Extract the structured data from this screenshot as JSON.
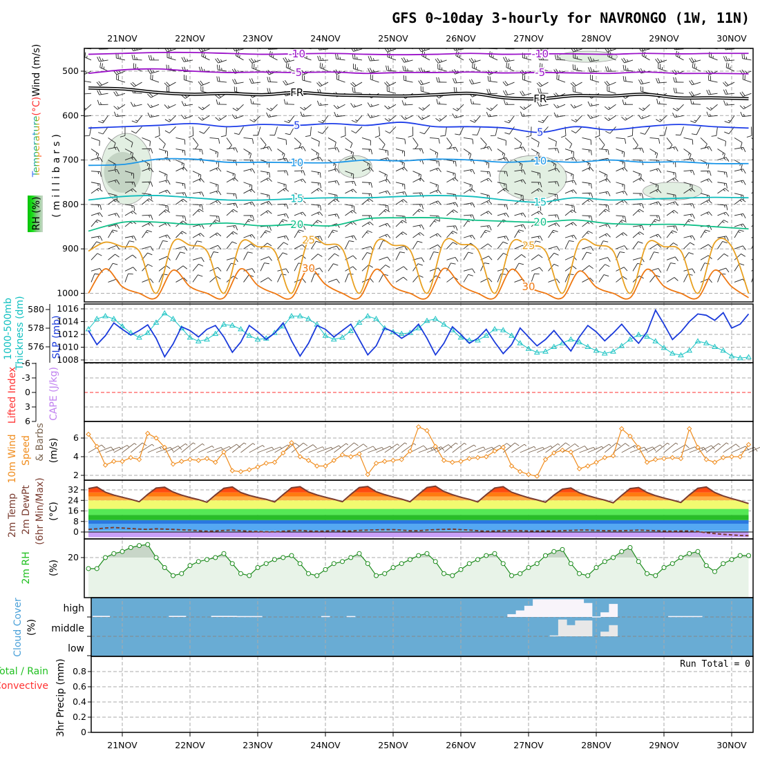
{
  "title": "GFS 0~10day 3-hourly for NAVRONGO (1W, 11N)",
  "dates": [
    "21NOV",
    "22NOV",
    "23NOV",
    "24NOV",
    "25NOV",
    "26NOV",
    "27NOV",
    "28NOV",
    "29NOV",
    "30NOV"
  ],
  "labels": {
    "wind": "Wind (m/s)",
    "degc": "(°C)",
    "temperature": "Temperature",
    "millibars": "(millibars)",
    "rh_box": "RH (%)",
    "thickness_1": "1000-500mb",
    "thickness_2": "Thickness (dm)",
    "slp": "SLP (mb)",
    "lifted_index": "Lifted Index",
    "cape": "CAPE (J/kg)",
    "wind10_1": "10m Wind",
    "wind10_2": "Speed",
    "wind10_3": "& Barbs",
    "wind10_unit": "(m/s)",
    "temp_1": "2m Temp",
    "temp_2": "2m DewPt",
    "temp_3": "(6hr Min/Max)",
    "temp_unit": "(°C)",
    "rh2m": "2m RH",
    "rh_unit": "(%)",
    "cloud": "Cloud Cover",
    "cloud_unit": "(%)",
    "cloud_high": "high",
    "cloud_middle": "middle",
    "cloud_low": "low",
    "precip_total": "Total / Rain",
    "precip_conv": "Convective",
    "precip_axis": "3hr Precip (mm)",
    "run_total": "Run Total = 0"
  },
  "colors": {
    "slp": "#1a3adb",
    "thickness": "#1cc4c4",
    "wind": "#f08c1c",
    "barb": "#7a6450",
    "temp_line": "#7a3c30",
    "rh_line": "#1a8a1a",
    "rh_fill": "#e8f3e8",
    "rh_fill_dark": "#c8d6c8",
    "cloud_bg": "#69acd4",
    "cloud_high": "#f8f4fa",
    "cloud_mid": "#e8e8e8",
    "li_zero": "#ff3030"
  },
  "chart_data": [
    {
      "type": "contour",
      "name": "upper-air",
      "ylabel": "millibars",
      "yticks": [
        500,
        600,
        700,
        800,
        900,
        1000
      ],
      "ylim": [
        450,
        1010
      ],
      "isotherms": [
        {
          "label": "-10",
          "color": "#9a10c8",
          "p": [
            462,
            460,
            458,
            458,
            460,
            462,
            461,
            460,
            462,
            463,
            462,
            460,
            462,
            461,
            461,
            462,
            460,
            461,
            460,
            460
          ]
        },
        {
          "label": "-5",
          "color": "#9a10c8",
          "p": [
            505,
            497,
            495,
            500,
            503,
            502,
            503,
            502,
            505,
            503,
            503,
            502,
            504,
            503,
            504,
            505,
            502,
            505,
            505,
            506
          ]
        },
        {
          "label": "FR",
          "color": "#000000",
          "p": [
            538,
            540,
            548,
            552,
            550,
            553,
            548,
            553,
            555,
            556,
            553,
            550,
            560,
            562,
            555,
            556,
            552,
            560,
            560,
            562
          ]
        },
        {
          "label": "5",
          "color": "#1c3ce8",
          "p": [
            628,
            625,
            622,
            618,
            625,
            620,
            622,
            618,
            622,
            615,
            625,
            625,
            628,
            638,
            625,
            632,
            625,
            620,
            625,
            628
          ]
        },
        {
          "label": "10",
          "color": "#1a96e8",
          "p": [
            712,
            710,
            698,
            698,
            705,
            705,
            706,
            706,
            700,
            702,
            698,
            700,
            705,
            702,
            705,
            700,
            705,
            704,
            708,
            708
          ]
        },
        {
          "label": "15",
          "color": "#10bcbc",
          "p": [
            790,
            782,
            780,
            785,
            790,
            790,
            787,
            785,
            785,
            782,
            780,
            782,
            790,
            795,
            785,
            790,
            788,
            786,
            784,
            785
          ]
        },
        {
          "label": "20",
          "color": "#10c088",
          "p": [
            860,
            840,
            840,
            845,
            842,
            848,
            845,
            848,
            832,
            830,
            830,
            835,
            838,
            840,
            835,
            843,
            845,
            845,
            850,
            855
          ]
        },
        {
          "label": "25",
          "color": "#e8a020",
          "p": [
            905,
            885,
            895,
            905,
            1000,
            885,
            892,
            905,
            1000,
            886,
            895,
            905,
            1000,
            880,
            890,
            900,
            1000,
            885,
            892,
            903,
            1000,
            884,
            890,
            902,
            1000,
            886,
            893,
            905,
            1000,
            885,
            892,
            905,
            1000,
            888,
            895,
            905,
            1000,
            886,
            895,
            1000
          ]
        },
        {
          "label": "30",
          "color": "#ee7711",
          "p": [
            1000,
            945,
            985,
            1000,
            1010,
            948,
            985,
            1000,
            1010,
            945,
            982,
            1000,
            1010,
            944,
            980,
            1000,
            1010,
            946,
            985,
            1000,
            1010,
            944,
            982,
            1000,
            1010,
            946,
            985,
            1000,
            1010,
            950,
            986,
            1000,
            1010,
            946,
            984,
            1000,
            1010,
            948,
            985,
            1010
          ]
        }
      ],
      "rh_areas": [
        {
          "label": "30",
          "i0": 2,
          "i1": 7,
          "p0": 640,
          "p1": 800,
          "dark": true
        },
        {
          "label": "30",
          "i0": 30,
          "i1": 33,
          "p0": 690,
          "p1": 740,
          "dark": false
        },
        {
          "label": "30",
          "i0": 49,
          "i1": 56,
          "p0": 690,
          "p1": 790,
          "dark": false
        },
        {
          "label": "30",
          "i0": 56,
          "i1": 62,
          "p0": 455,
          "p1": 480,
          "dark": false
        },
        {
          "label": "30",
          "i0": 66,
          "i1": 72,
          "p0": 750,
          "p1": 790,
          "dark": false
        }
      ],
      "wind_profile": [
        {
          "p": 450,
          "dir": 275,
          "kt": 25
        },
        {
          "p": 475,
          "dir": 275,
          "kt": 25
        },
        {
          "p": 500,
          "dir": 270,
          "kt": 25
        },
        {
          "p": 525,
          "dir": 265,
          "kt": 20
        },
        {
          "p": 550,
          "dir": 260,
          "kt": 20
        },
        {
          "p": 575,
          "dir": 250,
          "kt": 15
        },
        {
          "p": 600,
          "dir": 240,
          "kt": 15
        },
        {
          "p": 625,
          "dir": 200,
          "kt": 10
        },
        {
          "p": 650,
          "dir": 120,
          "kt": 10
        },
        {
          "p": 675,
          "dir": 100,
          "kt": 15
        },
        {
          "p": 700,
          "dir": 95,
          "kt": 15
        },
        {
          "p": 725,
          "dir": 90,
          "kt": 15
        },
        {
          "p": 750,
          "dir": 85,
          "kt": 15
        },
        {
          "p": 775,
          "dir": 80,
          "kt": 15
        },
        {
          "p": 800,
          "dir": 75,
          "kt": 15
        },
        {
          "p": 825,
          "dir": 70,
          "kt": 15
        },
        {
          "p": 850,
          "dir": 60,
          "kt": 15
        },
        {
          "p": 875,
          "dir": 55,
          "kt": 15
        },
        {
          "p": 900,
          "dir": 50,
          "kt": 10
        },
        {
          "p": 925,
          "dir": 50,
          "kt": 10
        },
        {
          "p": 950,
          "dir": 50,
          "kt": 10
        },
        {
          "p": 975,
          "dir": 45,
          "kt": 10
        }
      ]
    },
    {
      "type": "line",
      "name": "slp-thickness",
      "series": [
        {
          "name": "SLP (mb)",
          "axis": "right",
          "ylim": [
            1008,
            1016
          ],
          "yticks": [
            1008,
            1010,
            1012,
            1014,
            1016
          ],
          "values": [
            1012.6,
            1010.4,
            1011.8,
            1013.8,
            1012.8,
            1011.9,
            1012.6,
            1013.5,
            1011.4,
            1008.5,
            1010.5,
            1013.2,
            1012.6,
            1011.6,
            1012.8,
            1013.4,
            1011.6,
            1009.2,
            1010.8,
            1013.4,
            1012.4,
            1011.2,
            1012.2,
            1013.8,
            1011.0,
            1008.6,
            1010.6,
            1013.4,
            1012.8,
            1011.6,
            1012.6,
            1013.6,
            1011.2,
            1008.8,
            1010.2,
            1013.0,
            1012.4,
            1011.4,
            1012.2,
            1013.6,
            1011.4,
            1008.8,
            1010.6,
            1013.2,
            1012.0,
            1010.6,
            1011.4,
            1012.8,
            1010.8,
            1009.0,
            1010.4,
            1013.0,
            1011.6,
            1010.2,
            1011.2,
            1012.6,
            1011.0,
            1009.4,
            1011.6,
            1013.4,
            1012.4,
            1011.0,
            1012.2,
            1013.6,
            1012.0,
            1010.6,
            1012.4,
            1015.8,
            1013.6,
            1011.2,
            1012.4,
            1014.0,
            1015.2,
            1015.0,
            1014.2,
            1015.4,
            1013.0,
            1013.6,
            1015.2
          ]
        },
        {
          "name": "1000-500mb Thickness (dm)",
          "axis": "left",
          "ylim": [
            574.5,
            580.5
          ],
          "yticks": [
            576,
            578,
            580
          ],
          "values": [
            577.9,
            579.0,
            579.3,
            579.0,
            578.2,
            577.5,
            577.0,
            577.5,
            578.6,
            579.6,
            579.0,
            578.0,
            577.0,
            576.6,
            576.8,
            577.4,
            578.4,
            578.3,
            577.9,
            577.2,
            576.8,
            576.9,
            577.5,
            578.2,
            579.3,
            579.3,
            579.0,
            578.4,
            577.2,
            576.8,
            577.0,
            577.7,
            578.6,
            579.3,
            579.0,
            578.0,
            577.6,
            577.4,
            577.5,
            578.0,
            578.8,
            579.0,
            578.4,
            577.8,
            577.0,
            576.7,
            576.7,
            577.2,
            577.9,
            577.8,
            577.2,
            576.4,
            575.8,
            575.4,
            575.5,
            576.0,
            576.4,
            576.8,
            576.5,
            576.0,
            575.6,
            575.3,
            575.5,
            576.1,
            576.8,
            577.3,
            577.1,
            576.6,
            575.9,
            575.3,
            575.1,
            575.6,
            576.6,
            576.4,
            576.0,
            575.6,
            575.0,
            574.8,
            574.9
          ]
        }
      ]
    },
    {
      "type": "line",
      "name": "lifted-index-cape",
      "ylim": [
        -6,
        6
      ],
      "yticks": [
        "-6",
        "-3",
        "0",
        "3",
        "6"
      ],
      "values": []
    },
    {
      "type": "line",
      "name": "10m-wind",
      "ylim": [
        1.5,
        7.5
      ],
      "yticks": [
        2,
        4,
        6
      ],
      "barb_direction_deg": 60,
      "values": [
        6.4,
        5.1,
        3.1,
        3.5,
        3.5,
        3.9,
        3.7,
        6.5,
        6.0,
        5.0,
        3.2,
        3.5,
        3.7,
        3.6,
        3.8,
        3.4,
        4.5,
        2.5,
        2.4,
        2.6,
        2.9,
        3.3,
        3.4,
        4.4,
        5.5,
        4.0,
        3.6,
        3.0,
        3.0,
        3.6,
        4.2,
        4.0,
        4.3,
        2.1,
        3.3,
        3.5,
        3.6,
        3.7,
        4.6,
        7.2,
        6.8,
        5.1,
        3.6,
        3.4,
        3.5,
        3.8,
        3.9,
        4.0,
        4.6,
        5.0,
        3.0,
        2.4,
        2.1,
        1.9,
        3.7,
        4.4,
        4.7,
        4.5,
        2.7,
        3.0,
        3.4,
        3.9,
        4.1,
        7.0,
        6.2,
        5.0,
        3.4,
        3.7,
        3.8,
        3.9,
        3.8,
        7.0,
        5.0,
        3.7,
        3.4,
        3.9,
        4.0,
        4.0,
        5.3
      ]
    },
    {
      "type": "area",
      "name": "2m-temp-dewpoint",
      "ylim": [
        -4,
        36
      ],
      "yticks": [
        0,
        8,
        16,
        24,
        32
      ],
      "temp": [
        33.0,
        34.2,
        30.2,
        28.0,
        26.4,
        24.8,
        23.0,
        28.6,
        33.4,
        34.0,
        30.4,
        28.0,
        26.2,
        24.6,
        22.6,
        28.2,
        33.2,
        34.2,
        30.0,
        27.8,
        26.2,
        24.8,
        22.8,
        28.4,
        33.6,
        34.4,
        30.4,
        28.2,
        26.4,
        24.8,
        23.0,
        28.6,
        33.8,
        34.6,
        30.6,
        28.4,
        26.6,
        25.0,
        23.0,
        28.6,
        33.8,
        34.8,
        30.8,
        28.4,
        26.4,
        24.8,
        22.8,
        28.4,
        33.4,
        34.4,
        30.2,
        28.0,
        26.0,
        24.4,
        22.6,
        28.0,
        32.6,
        33.4,
        29.8,
        27.6,
        25.8,
        24.2,
        22.2,
        27.8,
        33.0,
        33.8,
        30.0,
        27.6,
        25.8,
        24.2,
        22.4,
        28.2,
        33.2,
        34.2,
        30.0,
        27.4,
        25.4,
        23.6,
        21.6
      ],
      "dewpoint": [
        2.0,
        2.4,
        3.0,
        3.4,
        3.0,
        2.6,
        2.2,
        2.0,
        2.4,
        2.2,
        2.0,
        1.6,
        1.4,
        1.0,
        0.6,
        0.8,
        1.2,
        1.4,
        1.0,
        0.6,
        0.4,
        0.2,
        0.2,
        0.6,
        1.0,
        1.2,
        0.8,
        0.6,
        0.8,
        1.0,
        0.8,
        0.8,
        1.2,
        1.4,
        1.6,
        1.8,
        1.8,
        1.4,
        1.0,
        1.0,
        1.4,
        1.8,
        2.0,
        2.2,
        1.8,
        1.4,
        1.0,
        0.6,
        0.8,
        1.0,
        1.2,
        1.0,
        0.8,
        0.8,
        0.8,
        0.8,
        1.0,
        1.2,
        1.4,
        1.4,
        1.2,
        1.0,
        1.0,
        1.0,
        1.2,
        1.4,
        1.2,
        1.0,
        0.8,
        0.6,
        0.8,
        0.8,
        0.4,
        -0.6,
        -1.2,
        -1.8,
        -2.2,
        -2.6,
        -2.8
      ]
    },
    {
      "type": "line",
      "name": "2m-rh",
      "ylim": [
        0,
        29
      ],
      "yticks": [
        20
      ],
      "values": [
        14.5,
        14.5,
        20,
        22,
        23,
        25,
        26,
        26.5,
        20,
        15,
        11,
        12,
        16,
        18,
        19,
        20,
        22,
        17,
        12,
        11,
        15,
        17,
        19,
        20,
        21,
        17,
        12,
        11,
        14,
        17,
        18,
        20,
        22,
        17,
        11,
        12,
        15,
        17,
        19,
        21,
        22,
        18,
        12,
        11,
        14,
        17,
        19,
        21,
        22,
        17,
        11,
        12,
        15,
        17,
        21,
        23,
        24,
        17,
        12,
        11,
        15,
        18,
        20,
        23,
        25,
        18,
        12,
        11,
        15,
        17,
        20,
        22,
        23,
        16,
        13,
        17,
        19,
        21,
        21
      ]
    },
    {
      "type": "bar",
      "name": "cloud-cover",
      "layers": [
        "high",
        "middle",
        "low"
      ],
      "high_idx": {
        "1": 6,
        "2": 6,
        "10": 6,
        "11": 6,
        "15": 6,
        "16": 6,
        "17": 6,
        "18": 5,
        "19": 5,
        "20": 5,
        "28": 5,
        "31": 5,
        "50": 15,
        "51": 35,
        "52": 60,
        "53": 95,
        "54": 95,
        "55": 95,
        "56": 95,
        "57": 95,
        "58": 95,
        "59": 75,
        "60": 3,
        "61": 25,
        "62": 70,
        "69": 5,
        "70": 5,
        "71": 5,
        "72": 5
      },
      "middle_idx": {
        "55": 5,
        "56": 90,
        "57": 60,
        "58": 85,
        "59": 85,
        "61": 25,
        "62": 60
      },
      "low_idx": {}
    },
    {
      "type": "bar",
      "name": "3hr-precip",
      "ylim": [
        0,
        1
      ],
      "yticks": [
        "0",
        "0.2",
        "0.4",
        "0.6",
        "0.8"
      ],
      "values": [],
      "run_total": 0
    }
  ]
}
